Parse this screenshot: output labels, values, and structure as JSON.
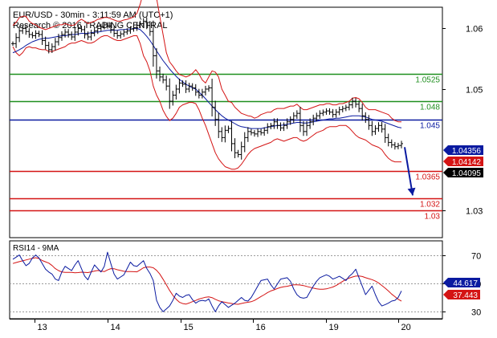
{
  "chart_data": {
    "type": "line",
    "title": "EUR/USD - 30min - 3:11:59 AM (UTC+1)",
    "subtitle": "Research © 2016 TRADING CENTRAL",
    "x_ticks": [
      "13",
      "14",
      "15",
      "16",
      "19",
      "20"
    ],
    "price_panel": {
      "ylim": [
        1.0255,
        1.0635
      ],
      "y_ticks": [
        {
          "value": 1.06,
          "label": "1.06"
        },
        {
          "value": 1.05,
          "label": "1.05"
        },
        {
          "value": 1.03,
          "label": "1.03"
        }
      ],
      "levels": [
        {
          "name": "resistance-1",
          "value": 1.0525,
          "label": "1.0525",
          "color": "#1f8f1f"
        },
        {
          "name": "resistance-2",
          "value": 1.048,
          "label": "1.048",
          "color": "#1f8f1f"
        },
        {
          "name": "pivot",
          "value": 1.045,
          "label": "1.045",
          "color": "#0a1aa0"
        },
        {
          "name": "support-1",
          "value": 1.0365,
          "label": "1.0365",
          "color": "#d41414"
        },
        {
          "name": "support-2",
          "value": 1.032,
          "label": "1.032",
          "color": "#d41414"
        },
        {
          "name": "support-3",
          "value": 1.03,
          "label": "1.03",
          "color": "#d41414"
        }
      ],
      "price_badges": [
        {
          "value": 1.04356,
          "label": "1.04356",
          "color": "#0a1aa0"
        },
        {
          "value": 1.04142,
          "label": "1.04142",
          "color": "#d41414"
        },
        {
          "value": 1.04095,
          "label": "1.04095",
          "color": "#000000"
        }
      ],
      "close": [
        1.0575,
        1.0585,
        1.0596,
        1.06,
        1.0595,
        1.059,
        1.0588,
        1.0592,
        1.059,
        1.058,
        1.0572,
        1.0565,
        1.057,
        1.0578,
        1.0585,
        1.059,
        1.0594,
        1.059,
        1.0586,
        1.0594,
        1.06,
        1.0598,
        1.059,
        1.0586,
        1.0592,
        1.0596,
        1.06,
        1.0603,
        1.0606,
        1.0604,
        1.0598,
        1.0592,
        1.0588,
        1.0591,
        1.0594,
        1.0596,
        1.0599,
        1.0601,
        1.0605,
        1.0608,
        1.0612,
        1.0605,
        1.0595,
        1.0555,
        1.053,
        1.052,
        1.0515,
        1.0505,
        1.048,
        1.049,
        1.05,
        1.051,
        1.0508,
        1.05,
        1.0505,
        1.0502,
        1.0495,
        1.049,
        1.0495,
        1.05,
        1.0502,
        1.047,
        1.045,
        1.043,
        1.042,
        1.0432,
        1.0435,
        1.041,
        1.0395,
        1.0392,
        1.0405,
        1.042,
        1.043,
        1.0428,
        1.0426,
        1.043,
        1.0428,
        1.0432,
        1.0438,
        1.044,
        1.0446,
        1.044,
        1.0436,
        1.044,
        1.0446,
        1.045,
        1.0456,
        1.046,
        1.044,
        1.043,
        1.044,
        1.0446,
        1.0452,
        1.0456,
        1.046,
        1.0462,
        1.0464,
        1.0462,
        1.0458,
        1.0462,
        1.0466,
        1.0468,
        1.047,
        1.0474,
        1.048,
        1.0475,
        1.0468,
        1.0456,
        1.045,
        1.044,
        1.043,
        1.0435,
        1.044,
        1.0434,
        1.042,
        1.0412,
        1.0408,
        1.0405,
        1.0407,
        1.041
      ],
      "upper_band": [
        1.0605,
        1.061,
        1.0618,
        1.062,
        1.062,
        1.0612,
        1.0608,
        1.0606,
        1.0602,
        1.06,
        1.0598,
        1.06,
        1.0602,
        1.0604,
        1.0606,
        1.0606,
        1.0608,
        1.0606,
        1.0605,
        1.0606,
        1.0612,
        1.0615,
        1.0612,
        1.0608,
        1.061,
        1.0612,
        1.0615,
        1.0616,
        1.0618,
        1.0618,
        1.0616,
        1.0614,
        1.0612,
        1.0612,
        1.0614,
        1.0615,
        1.0617,
        1.0619,
        1.0625,
        1.064,
        1.066,
        1.067,
        1.0671,
        1.0668,
        1.065,
        1.062,
        1.059,
        1.056,
        1.0545,
        1.0538,
        1.053,
        1.0524,
        1.0522,
        1.052,
        1.0522,
        1.0526,
        1.0532,
        1.0525,
        1.0515,
        1.051,
        1.052,
        1.053,
        1.0528,
        1.052,
        1.05,
        1.049,
        1.048,
        1.0478,
        1.047,
        1.0465,
        1.046,
        1.0458,
        1.0456,
        1.0455,
        1.0452,
        1.0454,
        1.0458,
        1.046,
        1.0462,
        1.0462,
        1.0466,
        1.0468,
        1.0468,
        1.0468,
        1.047,
        1.0472,
        1.0472,
        1.0475,
        1.047,
        1.0466,
        1.0466,
        1.0468,
        1.047,
        1.0472,
        1.0474,
        1.0474,
        1.0476,
        1.0476,
        1.0474,
        1.0474,
        1.0476,
        1.0476,
        1.0478,
        1.048,
        1.0485,
        1.0486,
        1.0484,
        1.0478,
        1.047,
        1.0466,
        1.0466,
        1.0466,
        1.0464,
        1.0462,
        1.046,
        1.0458,
        1.0452,
        1.0448,
        1.0446,
        1.0446
      ],
      "lower_band": [
        1.057,
        1.056,
        1.0555,
        1.056,
        1.0568,
        1.057,
        1.0568,
        1.0568,
        1.0566,
        1.0565,
        1.0565,
        1.0562,
        1.0562,
        1.0564,
        1.0566,
        1.0568,
        1.057,
        1.0574,
        1.0576,
        1.0576,
        1.0578,
        1.058,
        1.0578,
        1.0576,
        1.0576,
        1.0578,
        1.0582,
        1.0586,
        1.0588,
        1.0588,
        1.0585,
        1.0582,
        1.058,
        1.058,
        1.0582,
        1.0584,
        1.0586,
        1.0588,
        1.0588,
        1.0575,
        1.0555,
        1.0545,
        1.053,
        1.0505,
        1.049,
        1.048,
        1.0465,
        1.0455,
        1.0448,
        1.0452,
        1.046,
        1.047,
        1.0474,
        1.0476,
        1.0478,
        1.0478,
        1.0476,
        1.0466,
        1.0452,
        1.044,
        1.0425,
        1.041,
        1.0395,
        1.0385,
        1.0378,
        1.0372,
        1.037,
        1.0368,
        1.0368,
        1.037,
        1.0376,
        1.0384,
        1.0392,
        1.0398,
        1.0402,
        1.0404,
        1.0406,
        1.0408,
        1.041,
        1.0412,
        1.0416,
        1.0418,
        1.0416,
        1.0414,
        1.0416,
        1.0418,
        1.042,
        1.042,
        1.0416,
        1.0414,
        1.0416,
        1.042,
        1.0424,
        1.0428,
        1.043,
        1.0432,
        1.0436,
        1.0438,
        1.0438,
        1.0438,
        1.044,
        1.044,
        1.044,
        1.0436,
        1.043,
        1.0424,
        1.042,
        1.0418,
        1.0416,
        1.0412,
        1.0408,
        1.0406,
        1.0404,
        1.04,
        1.0392,
        1.0386,
        1.0382,
        1.038,
        1.038,
        1.038
      ],
      "moving_average": [
        1.056,
        1.0562,
        1.0565,
        1.0568,
        1.0572,
        1.0575,
        1.0578,
        1.058,
        1.0582,
        1.0583,
        1.0584,
        1.0584,
        1.0585,
        1.0586,
        1.0587,
        1.0588,
        1.0588,
        1.0589,
        1.059,
        1.059,
        1.0591,
        1.0592,
        1.0592,
        1.0592,
        1.0593,
        1.0594,
        1.0594,
        1.0595,
        1.0596,
        1.0597,
        1.0597,
        1.0597,
        1.0597,
        1.0598,
        1.0598,
        1.0599,
        1.0599,
        1.06,
        1.06,
        1.0598,
        1.0593,
        1.0587,
        1.058,
        1.0572,
        1.0563,
        1.0555,
        1.0547,
        1.054,
        1.0533,
        1.0527,
        1.0521,
        1.0516,
        1.0512,
        1.0508,
        1.0505,
        1.0502,
        1.05,
        1.0495,
        1.049,
        1.0484,
        1.0478,
        1.0472,
        1.0466,
        1.0461,
        1.0456,
        1.0452,
        1.0449,
        1.0446,
        1.0443,
        1.044,
        1.0438,
        1.0437,
        1.0436,
        1.0435,
        1.0435,
        1.0435,
        1.0435,
        1.0436,
        1.0437,
        1.0438,
        1.0439,
        1.044,
        1.044,
        1.0441,
        1.0442,
        1.0443,
        1.0444,
        1.0445,
        1.0445,
        1.0444,
        1.0444,
        1.0445,
        1.0446,
        1.0447,
        1.0448,
        1.0449,
        1.045,
        1.0451,
        1.0451,
        1.0452,
        1.0452,
        1.0453,
        1.0454,
        1.0455,
        1.0456,
        1.0456,
        1.0456,
        1.0455,
        1.0454,
        1.0452,
        1.045,
        1.0449,
        1.0448,
        1.0447,
        1.0445,
        1.0443,
        1.0441,
        1.0439,
        1.0437,
        1.0436
      ],
      "forecast": {
        "from": 1.04095,
        "to": 1.0322,
        "color": "#0a1aa0"
      }
    },
    "rsi_panel": {
      "label": "RSI14 - 9MA",
      "ylim": [
        25,
        80
      ],
      "y_ticks": [
        {
          "value": 70,
          "label": "70"
        },
        {
          "value": 50,
          "label": "50"
        },
        {
          "value": 30,
          "label": "30"
        }
      ],
      "badges": [
        {
          "value": 44.617,
          "label": "44.617",
          "color": "#0a1aa0"
        },
        {
          "value": 37.443,
          "label": "37.443",
          "color": "#d41414"
        }
      ],
      "rsi": [
        67.0,
        68.5,
        70.0,
        66.0,
        62.5,
        64.0,
        68.0,
        70.0,
        68.0,
        64.0,
        60.0,
        58.0,
        56.5,
        53.0,
        52.0,
        58.0,
        62.0,
        60.5,
        59.0,
        63.0,
        66.0,
        60.5,
        55.0,
        52.5,
        58.0,
        63.0,
        60.5,
        58.0,
        62.0,
        72.0,
        64.0,
        56.5,
        53.0,
        54.5,
        56.0,
        60.5,
        65.0,
        62.5,
        62.0,
        64.0,
        66.0,
        60.5,
        57.0,
        52.0,
        38.0,
        33.0,
        30.0,
        32.0,
        34.0,
        38.0,
        43.0,
        41.0,
        40.0,
        41.5,
        42.0,
        38.5,
        36.0,
        37.5,
        38.0,
        37.5,
        39.0,
        34.0,
        30.0,
        34.0,
        37.0,
        35.0,
        33.0,
        34.5,
        36.0,
        38.0,
        40.0,
        38.0,
        37.5,
        40.0,
        44.0,
        48.0,
        52.0,
        52.5,
        53.0,
        49.0,
        46.0,
        49.5,
        53.0,
        53.5,
        54.0,
        51.5,
        46.0,
        42.0,
        40.0,
        39.5,
        40.0,
        44.0,
        48.0,
        51.5,
        54.0,
        55.0,
        56.0,
        55.0,
        53.0,
        54.0,
        55.0,
        53.5,
        52.0,
        55.0,
        57.0,
        60.0,
        54.0,
        48.0,
        42.0,
        45.0,
        48.0,
        42.0,
        37.0,
        34.0,
        35.0,
        36.0,
        37.5,
        38.0,
        40.0,
        44.617
      ],
      "ma": [
        64.0,
        64.7,
        65.3,
        65.9,
        66.5,
        67.1,
        67.7,
        68.1,
        67.5,
        66.1,
        65.2,
        64.3,
        62.6,
        60.4,
        59.0,
        58.0,
        57.8,
        57.8,
        57.7,
        57.5,
        57.6,
        57.9,
        57.8,
        57.6,
        58.1,
        58.7,
        59.1,
        58.7,
        58.3,
        59.5,
        60.4,
        60.3,
        59.6,
        59.1,
        58.5,
        58.3,
        58.3,
        58.2,
        58.1,
        59.5,
        61.0,
        61.5,
        61.5,
        61.0,
        59.2,
        56.6,
        52.9,
        48.9,
        45.0,
        41.5,
        38.8,
        36.7,
        35.7,
        35.3,
        36.1,
        37.1,
        37.9,
        38.9,
        39.6,
        40.2,
        40.4,
        39.9,
        38.7,
        37.7,
        37.1,
        36.6,
        36.1,
        35.8,
        35.4,
        35.2,
        35.8,
        36.3,
        36.6,
        37.0,
        37.9,
        39.3,
        40.7,
        42.0,
        43.5,
        44.6,
        45.4,
        46.3,
        47.1,
        47.6,
        47.9,
        48.5,
        48.9,
        48.9,
        48.8,
        48.4,
        47.8,
        47.2,
        46.6,
        46.1,
        45.8,
        45.8,
        46.1,
        46.7,
        47.4,
        48.5,
        49.9,
        51.4,
        52.7,
        53.7,
        54.5,
        55.1,
        55.2,
        54.8,
        54.0,
        53.3,
        52.6,
        51.6,
        50.3,
        48.5,
        46.6,
        44.6,
        42.4,
        40.6,
        38.8,
        37.443
      ]
    }
  }
}
